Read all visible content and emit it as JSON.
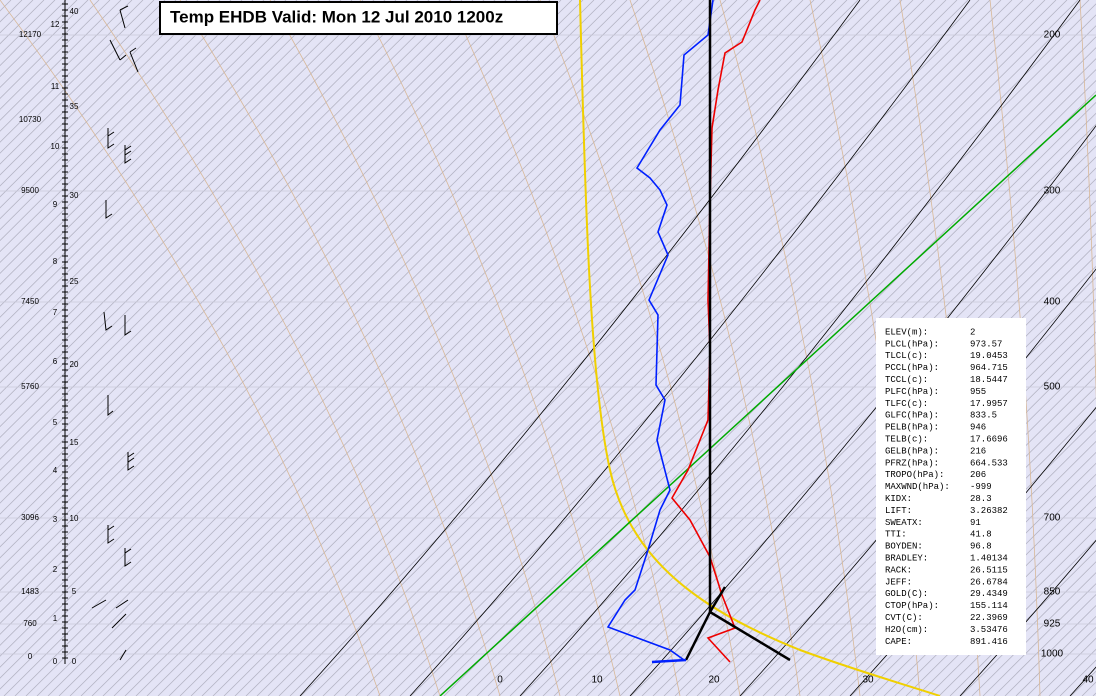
{
  "title": "Temp EHDB  Valid: Mon 12 Jul 2010 1200z",
  "pressure_labels": [
    "200",
    "300",
    "400",
    "500",
    "700",
    "850",
    "925",
    "1000"
  ],
  "temperature_labels": [
    "0",
    "10",
    "20",
    "30",
    "40"
  ],
  "height_labels": [
    "12170",
    "10730",
    "9500",
    "7450",
    "5760",
    "3096",
    "1483",
    "760",
    "0"
  ],
  "km_labels": [
    "12",
    "11",
    "10",
    "9",
    "8",
    "7",
    "6",
    "5",
    "4",
    "3",
    "2",
    "1",
    "0"
  ],
  "kft_labels": [
    "40",
    "35",
    "30",
    "25",
    "20",
    "15",
    "10",
    "5",
    "0"
  ],
  "stats": [
    {
      "label": "ELEV(m):",
      "value": 2
    },
    {
      "label": "PLCL(hPa):",
      "value": 973.57
    },
    {
      "label": "TLCL(c):",
      "value": 19.0453
    },
    {
      "label": "PCCL(hPa):",
      "value": 964.715
    },
    {
      "label": "TCCL(c):",
      "value": 18.5447
    },
    {
      "label": "PLFC(hPa):",
      "value": 955
    },
    {
      "label": "TLFC(c):",
      "value": 17.9957
    },
    {
      "label": "GLFC(hPa):",
      "value": 833.5
    },
    {
      "label": "PELB(hPa):",
      "value": 946
    },
    {
      "label": "TELB(c):",
      "value": 17.6696
    },
    {
      "label": "GELB(hPa):",
      "value": 216
    },
    {
      "label": "PFRZ(hPa):",
      "value": 664.533
    },
    {
      "label": "TROPO(hPa):",
      "value": 206
    },
    {
      "label": "MAXWND(hPa):",
      "value": -999
    },
    {
      "label": "KIDX:",
      "value": 28.3
    },
    {
      "label": "LIFT:",
      "value": 3.26382
    },
    {
      "label": "SWEATX:",
      "value": 91
    },
    {
      "label": "TTI:",
      "value": 41.8
    },
    {
      "label": "BOYDEN:",
      "value": 96.8
    },
    {
      "label": "BRADLEY:",
      "value": 1.40134
    },
    {
      "label": "RACK:",
      "value": 26.5115
    },
    {
      "label": "JEFF:",
      "value": 26.6784
    },
    {
      "label": "GOLD(C):",
      "value": 29.4349
    },
    {
      "label": "CTOP(hPa):",
      "value": 155.114
    },
    {
      "label": "CVT(C):",
      "value": 22.3969
    },
    {
      "label": "H2O(cm):",
      "value": 3.53476
    },
    {
      "label": "CAPE:",
      "value": 891.416
    }
  ]
}
